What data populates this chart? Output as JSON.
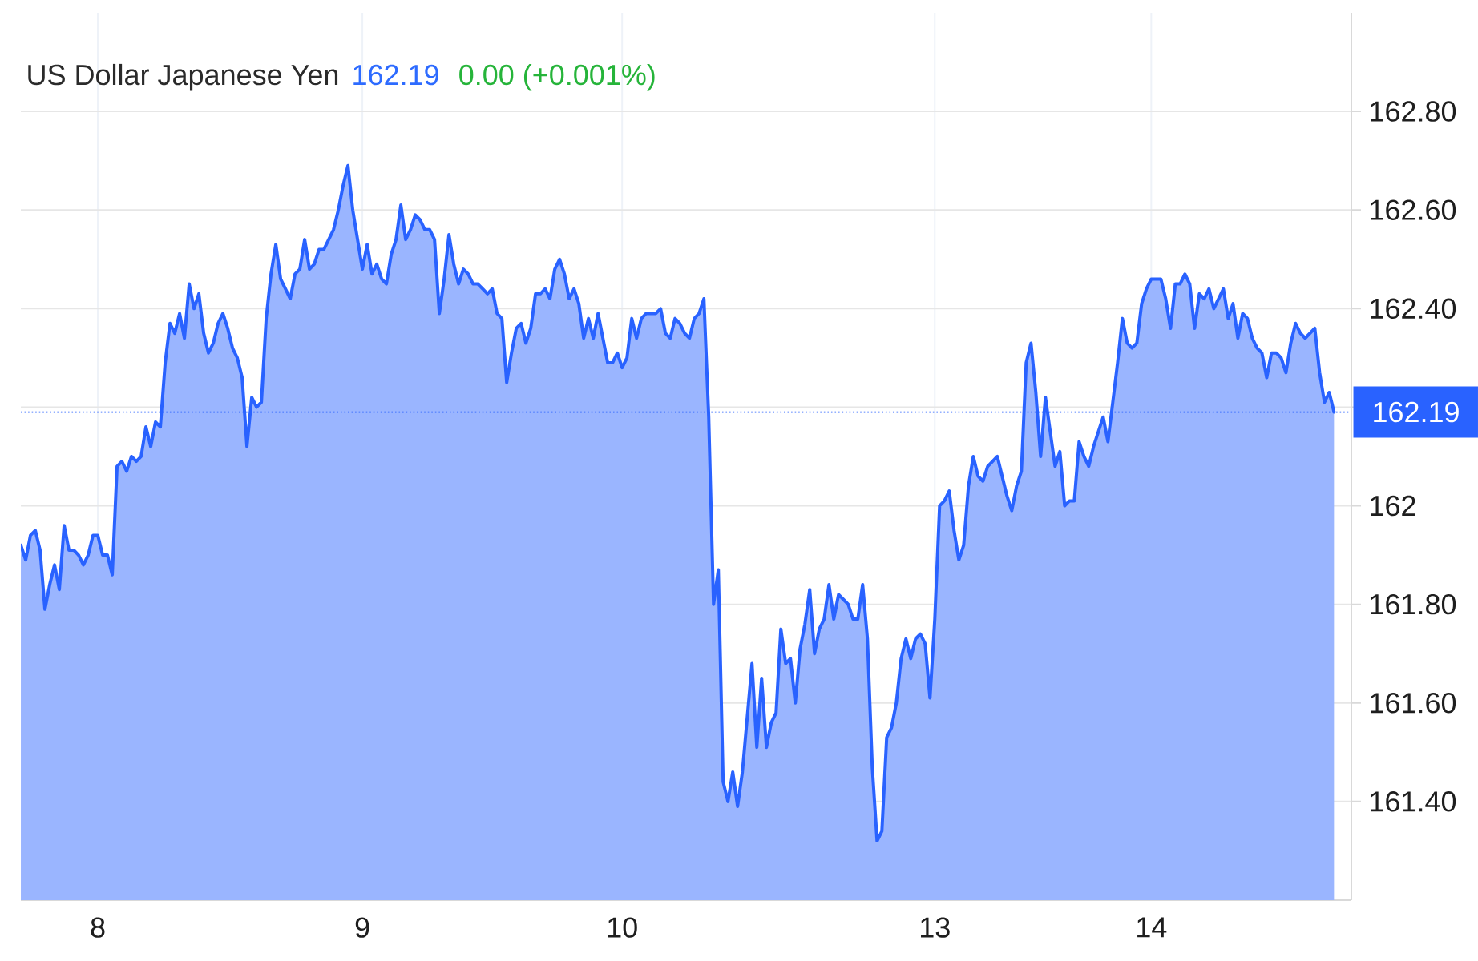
{
  "chart_data": {
    "type": "area",
    "title": "US Dollar Japanese Yen",
    "annotations": [
      "162.19",
      "0.00 (+0.001%)"
    ],
    "color": "#2962ff",
    "categories": [
      null,
      null,
      null,
      null,
      null,
      null,
      null,
      null,
      null,
      null,
      null,
      null,
      null,
      null,
      null,
      null,
      "8",
      null,
      null,
      null,
      null,
      null,
      null,
      null,
      null,
      null,
      null,
      null,
      null,
      null,
      null,
      null,
      null,
      null,
      null,
      null,
      null,
      null,
      null,
      null,
      null,
      null,
      null,
      null,
      null,
      null,
      null,
      null,
      null,
      null,
      null,
      null,
      null,
      null,
      null,
      null,
      null,
      null,
      null,
      null,
      null,
      null,
      null,
      null,
      null,
      null,
      null,
      null,
      null,
      null,
      null,
      "9",
      null,
      null,
      null,
      null,
      null,
      null,
      null,
      null,
      null,
      null,
      null,
      null,
      null,
      null,
      null,
      null,
      null,
      null,
      null,
      null,
      null,
      null,
      null,
      null,
      null,
      null,
      null,
      null,
      null,
      null,
      null,
      null,
      null,
      null,
      null,
      null,
      null,
      null,
      null,
      null,
      null,
      null,
      null,
      null,
      null,
      null,
      null,
      null,
      null,
      null,
      null,
      null,
      null,
      "10",
      null,
      null,
      null,
      null,
      null,
      null,
      null,
      null,
      null,
      null,
      null,
      null,
      null,
      null,
      null,
      null,
      null,
      null,
      null,
      null,
      null,
      null,
      null,
      null,
      null,
      null,
      null,
      null,
      null,
      null,
      null,
      null,
      null,
      null,
      null,
      null,
      null,
      null,
      null,
      null,
      null,
      null,
      null,
      null,
      null,
      null,
      null,
      null,
      null,
      null,
      null,
      null,
      null,
      null,
      null,
      null,
      null,
      null,
      null,
      null,
      null,
      null,
      null,
      null,
      "13",
      null,
      null,
      null,
      null,
      null,
      null,
      null,
      null,
      null,
      null,
      null,
      null,
      null,
      null,
      null,
      null,
      null,
      null,
      null,
      null,
      null,
      null,
      null,
      null,
      null,
      null,
      null,
      null,
      null,
      null,
      null,
      null,
      null,
      null,
      null,
      null,
      null,
      null,
      null,
      null,
      null,
      null,
      null,
      null,
      "14",
      null,
      null,
      null,
      null,
      null,
      null,
      null,
      null,
      null,
      null,
      null,
      null,
      null,
      null,
      null,
      null,
      null,
      null,
      null,
      null,
      null,
      null,
      null,
      null,
      null,
      null,
      null,
      null,
      null,
      null,
      null,
      null,
      null,
      null,
      null,
      null,
      null,
      null
    ],
    "values": [
      161.92,
      161.89,
      161.94,
      161.95,
      161.91,
      161.79,
      161.84,
      161.88,
      161.83,
      161.96,
      161.91,
      161.91,
      161.9,
      161.88,
      161.9,
      161.94,
      161.94,
      161.9,
      161.9,
      161.86,
      162.08,
      162.09,
      162.07,
      162.1,
      162.09,
      162.1,
      162.16,
      162.12,
      162.17,
      162.16,
      162.29,
      162.37,
      162.35,
      162.39,
      162.34,
      162.45,
      162.4,
      162.43,
      162.35,
      162.31,
      162.33,
      162.37,
      162.39,
      162.36,
      162.32,
      162.3,
      162.26,
      162.12,
      162.22,
      162.2,
      162.21,
      162.38,
      162.47,
      162.53,
      162.46,
      162.44,
      162.42,
      162.47,
      162.48,
      162.54,
      162.48,
      162.49,
      162.52,
      162.52,
      162.54,
      162.56,
      162.6,
      162.65,
      162.69,
      162.6,
      162.54,
      162.48,
      162.53,
      162.47,
      162.49,
      162.46,
      162.45,
      162.51,
      162.54,
      162.61,
      162.54,
      162.56,
      162.59,
      162.58,
      162.56,
      162.56,
      162.54,
      162.39,
      162.46,
      162.55,
      162.49,
      162.45,
      162.48,
      162.47,
      162.45,
      162.45,
      162.44,
      162.43,
      162.44,
      162.39,
      162.38,
      162.25,
      162.31,
      162.36,
      162.37,
      162.33,
      162.36,
      162.43,
      162.43,
      162.44,
      162.42,
      162.48,
      162.5,
      162.47,
      162.42,
      162.44,
      162.41,
      162.34,
      162.38,
      162.34,
      162.39,
      162.34,
      162.29,
      162.29,
      162.31,
      162.28,
      162.3,
      162.38,
      162.34,
      162.38,
      162.39,
      162.39,
      162.39,
      162.4,
      162.35,
      162.34,
      162.38,
      162.37,
      162.35,
      162.34,
      162.38,
      162.39,
      162.42,
      162.18,
      161.8,
      161.87,
      161.44,
      161.4,
      161.46,
      161.39,
      161.46,
      161.57,
      161.68,
      161.51,
      161.65,
      161.51,
      161.56,
      161.58,
      161.75,
      161.68,
      161.69,
      161.6,
      161.71,
      161.76,
      161.83,
      161.7,
      161.75,
      161.77,
      161.84,
      161.77,
      161.82,
      161.81,
      161.8,
      161.77,
      161.77,
      161.84,
      161.73,
      161.47,
      161.32,
      161.34,
      161.53,
      161.55,
      161.6,
      161.69,
      161.73,
      161.69,
      161.73,
      161.74,
      161.72,
      161.61,
      161.77,
      162.0,
      162.01,
      162.03,
      161.95,
      161.89,
      161.92,
      162.04,
      162.1,
      162.06,
      162.05,
      162.08,
      162.09,
      162.1,
      162.06,
      162.02,
      161.99,
      162.04,
      162.07,
      162.29,
      162.33,
      162.23,
      162.1,
      162.22,
      162.15,
      162.08,
      162.11,
      162.0,
      162.01,
      162.01,
      162.13,
      162.1,
      162.08,
      162.12,
      162.15,
      162.18,
      162.13,
      162.21,
      162.29,
      162.38,
      162.33,
      162.32,
      162.33,
      162.41,
      162.44,
      162.46,
      162.46,
      162.46,
      162.42,
      162.36,
      162.45,
      162.45,
      162.47,
      162.45,
      162.36,
      162.43,
      162.42,
      162.44,
      162.4,
      162.42,
      162.44,
      162.38,
      162.41,
      162.34,
      162.39,
      162.38,
      162.34,
      162.32,
      162.31,
      162.26,
      162.31,
      162.31,
      162.3,
      162.27,
      162.33,
      162.37,
      162.35,
      162.34,
      162.35,
      162.36,
      162.27,
      162.21,
      162.23,
      162.19
    ],
    "ylim": [
      161.2,
      163.0
    ],
    "yticks": [
      {
        "value": 161.4,
        "label": "161.40"
      },
      {
        "value": 161.6,
        "label": "161.60"
      },
      {
        "value": 161.8,
        "label": "161.80"
      },
      162,
      {
        "value": 162.2,
        "label": null
      },
      {
        "value": 162.4,
        "label": "162.40"
      },
      {
        "value": 162.6,
        "label": "162.60"
      },
      {
        "value": 162.8,
        "label": "162.80"
      }
    ],
    "grid": true,
    "ref_lines": [
      {
        "axis": "y",
        "value": 162.19,
        "label": "162.19",
        "color": "#2962ff",
        "line_style": "dotted"
      }
    ]
  }
}
